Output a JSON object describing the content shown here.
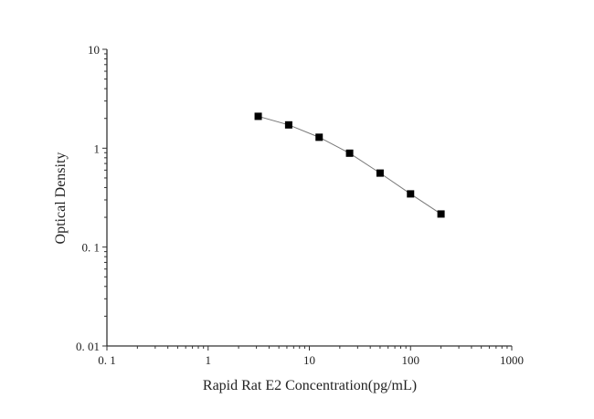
{
  "chart_data": {
    "type": "line",
    "title": "",
    "xlabel": "Rapid Rat E2 Concentration(pg/mL)",
    "ylabel": "Optical Density",
    "xscale": "log",
    "yscale": "log",
    "xlim": [
      0.1,
      1000
    ],
    "ylim": [
      0.01,
      10
    ],
    "xticks": [
      0.1,
      1,
      10,
      100,
      1000
    ],
    "xtick_labels": [
      "0. 1",
      "1",
      "10",
      "100",
      "1000"
    ],
    "yticks": [
      0.01,
      0.1,
      1,
      10
    ],
    "ytick_labels": [
      "0. 01",
      "0. 1",
      "1",
      "10"
    ],
    "grid": false,
    "marker": "square",
    "marker_color": "#000000",
    "line_color": "#777777",
    "series": [
      {
        "x": [
          3.125,
          6.25,
          12.5,
          25,
          50,
          100,
          200
        ],
        "y": [
          2.1,
          1.72,
          1.29,
          0.89,
          0.56,
          0.345,
          0.216
        ]
      }
    ]
  }
}
